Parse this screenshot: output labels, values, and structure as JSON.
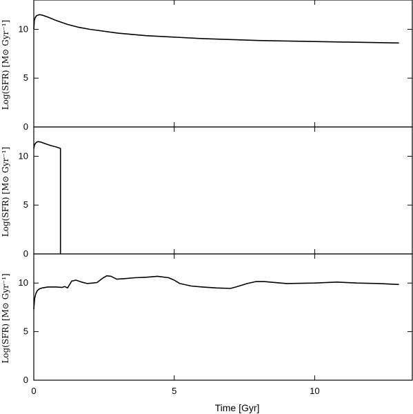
{
  "chart_data": [
    {
      "type": "line",
      "ylabel": "Log(SFR)  [M⊙ Gyr⁻¹]",
      "xlabel": "",
      "xlim": [
        0,
        13.5
      ],
      "ylim": [
        0,
        13
      ],
      "x_ticks": [
        0,
        5,
        10
      ],
      "y_ticks": [
        0,
        5,
        10
      ],
      "x_tick_labels": [],
      "y_tick_labels": [
        "0",
        "5",
        "10"
      ],
      "series": [
        {
          "x": [
            0.0,
            0.02,
            0.05,
            0.1,
            0.2,
            0.3,
            0.5,
            0.8,
            1.2,
            1.6,
            2.0,
            3.0,
            4.0,
            5.0,
            6.0,
            7.0,
            8.0,
            9.0,
            10.0,
            11.0,
            12.0,
            13.0
          ],
          "y": [
            10.0,
            10.9,
            11.2,
            11.4,
            11.5,
            11.45,
            11.25,
            10.9,
            10.5,
            10.2,
            10.0,
            9.6,
            9.35,
            9.2,
            9.05,
            8.95,
            8.85,
            8.8,
            8.75,
            8.7,
            8.65,
            8.6
          ]
        }
      ]
    },
    {
      "type": "line",
      "ylabel": "Log(SFR)  [M⊙ Gyr⁻¹]",
      "xlabel": "",
      "xlim": [
        0,
        13.5
      ],
      "ylim": [
        0,
        13
      ],
      "x_ticks": [
        0,
        5,
        10
      ],
      "y_ticks": [
        0,
        5,
        10
      ],
      "x_tick_labels": [],
      "y_tick_labels": [
        "0",
        "5",
        "10"
      ],
      "series": [
        {
          "x": [
            0.0,
            0.03,
            0.08,
            0.15,
            0.25,
            0.4,
            0.6,
            0.8,
            0.95,
            0.95
          ],
          "y": [
            10.8,
            11.2,
            11.4,
            11.5,
            11.45,
            11.3,
            11.1,
            10.95,
            10.8,
            0.0
          ]
        }
      ]
    },
    {
      "type": "line",
      "ylabel": "Log(SFR)  [M⊙ Gyr⁻¹]",
      "xlabel": "Time [Gyr]",
      "xlim": [
        0,
        13.5
      ],
      "ylim": [
        0,
        13
      ],
      "x_ticks": [
        0,
        5,
        10
      ],
      "y_ticks": [
        0,
        5,
        10
      ],
      "x_tick_labels": [
        "0",
        "5",
        "10"
      ],
      "y_tick_labels": [
        "0",
        "5",
        "10"
      ],
      "series": [
        {
          "x": [
            0.0,
            0.03,
            0.07,
            0.12,
            0.2,
            0.3,
            0.5,
            0.8,
            1.0,
            1.1,
            1.2,
            1.35,
            1.5,
            1.7,
            1.9,
            2.1,
            2.25,
            2.45,
            2.6,
            2.75,
            2.95,
            3.2,
            3.6,
            4.0,
            4.4,
            4.8,
            5.0,
            5.2,
            5.6,
            6.0,
            6.5,
            7.0,
            7.2,
            7.6,
            7.9,
            8.2,
            9.0,
            10.0,
            10.8,
            11.5,
            12.3,
            13.0
          ],
          "y": [
            7.3,
            8.4,
            8.9,
            9.2,
            9.4,
            9.5,
            9.6,
            9.6,
            9.55,
            9.65,
            9.5,
            10.2,
            10.3,
            10.1,
            9.95,
            10.0,
            10.05,
            10.5,
            10.75,
            10.7,
            10.4,
            10.45,
            10.55,
            10.6,
            10.7,
            10.55,
            10.3,
            9.95,
            9.7,
            9.6,
            9.5,
            9.45,
            9.6,
            9.95,
            10.15,
            10.15,
            9.95,
            10.0,
            10.1,
            10.0,
            9.95,
            9.85
          ]
        }
      ]
    }
  ]
}
